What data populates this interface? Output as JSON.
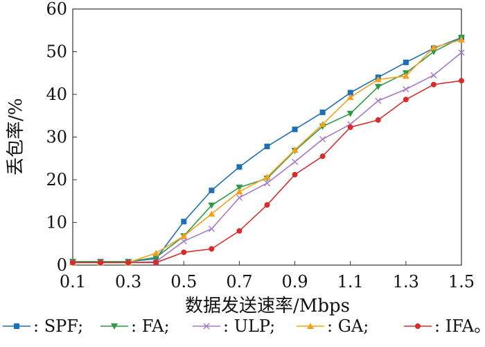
{
  "chart_data": {
    "type": "line",
    "title": "",
    "xlabel": "数据发送速率/Mbps",
    "ylabel": "丢包率/%",
    "xlim": [
      0.1,
      1.5
    ],
    "ylim": [
      0,
      60
    ],
    "xticks": [
      0.1,
      0.3,
      0.5,
      0.7,
      0.9,
      1.1,
      1.3,
      1.5
    ],
    "xtick_labels": [
      "0.1",
      "0.3",
      "0.5",
      "0.7",
      "0.9",
      "1.1",
      "1.3",
      "1.5"
    ],
    "yticks": [
      0,
      10,
      20,
      30,
      40,
      50,
      60
    ],
    "ytick_labels": [
      "0",
      "10",
      "20",
      "30",
      "40",
      "50",
      "60"
    ],
    "x": [
      0.1,
      0.2,
      0.3,
      0.4,
      0.5,
      0.6,
      0.7,
      0.8,
      0.9,
      1.0,
      1.1,
      1.2,
      1.3,
      1.4,
      1.5
    ],
    "grid": false,
    "legend_position": "bottom",
    "series": [
      {
        "name": "SPF",
        "legend_label": ": SPF;",
        "color": "#1f6fb5",
        "marker": "square",
        "values": [
          0.8,
          0.8,
          0.8,
          1.5,
          10.2,
          17.5,
          23.0,
          27.8,
          31.8,
          35.8,
          40.4,
          44.0,
          47.5,
          50.8,
          53.3
        ]
      },
      {
        "name": "FA",
        "legend_label": ": FA;",
        "color": "#2e9a44",
        "marker": "triangle-down",
        "values": [
          0.8,
          0.8,
          0.8,
          1.8,
          6.8,
          14.0,
          18.2,
          20.3,
          26.8,
          32.5,
          35.5,
          41.8,
          45.0,
          50.0,
          53.3
        ]
      },
      {
        "name": "ULP",
        "legend_label": ": ULP;",
        "color": "#a678c8",
        "marker": "x",
        "values": [
          0.6,
          0.6,
          0.6,
          0.8,
          5.6,
          8.5,
          15.8,
          19.2,
          24.2,
          29.5,
          33.0,
          38.5,
          41.2,
          44.5,
          49.8
        ]
      },
      {
        "name": "GA",
        "legend_label": ": GA;",
        "color": "#f4a11d",
        "marker": "triangle-up",
        "values": [
          0.6,
          0.6,
          0.6,
          2.8,
          6.8,
          12.0,
          17.2,
          20.6,
          27.0,
          33.0,
          39.3,
          43.5,
          44.3,
          51.0,
          52.8
        ]
      },
      {
        "name": "IFA",
        "legend_label": ": IFA。",
        "color": "#d72c2c",
        "marker": "circle",
        "values": [
          0.6,
          0.6,
          0.6,
          0.6,
          3.0,
          3.8,
          8.0,
          14.1,
          21.2,
          25.5,
          32.3,
          34.0,
          38.8,
          42.3,
          43.2
        ]
      }
    ]
  }
}
